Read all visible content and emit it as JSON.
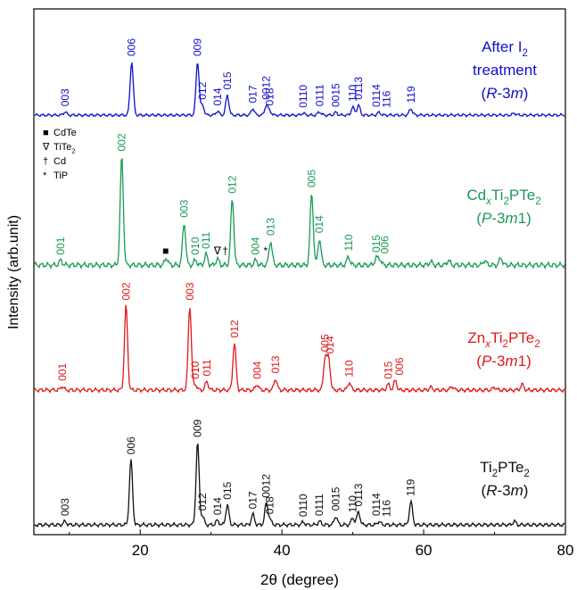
{
  "chart_data": {
    "type": "line",
    "xlabel": "2θ (degree)",
    "ylabel": "Intensity (arb.unit)",
    "xlim": [
      5,
      80
    ],
    "xticks": [
      20,
      40,
      60,
      80
    ],
    "series": [
      {
        "label_lines": [
          "After I2",
          "treatment",
          "(R-3m)"
        ],
        "color": "#1010cc",
        "peaks": [
          [
            9.4,
            0.05
          ],
          [
            18.8,
            0.8
          ],
          [
            28.1,
            0.8
          ],
          [
            28.8,
            0.15
          ],
          [
            30.9,
            0.06
          ],
          [
            32.3,
            0.3
          ],
          [
            35.9,
            0.1
          ],
          [
            37.8,
            0.15
          ],
          [
            38.3,
            0.06
          ],
          [
            43.0,
            0.03
          ],
          [
            45.3,
            0.05
          ],
          [
            47.6,
            0.04
          ],
          [
            50.0,
            0.12
          ],
          [
            50.8,
            0.15
          ],
          [
            53.7,
            0.04
          ],
          [
            58.2,
            0.1
          ],
          [
            72.8,
            0.03
          ]
        ],
        "reflections": [
          {
            "x": 9.4,
            "label": "003"
          },
          {
            "x": 18.8,
            "label": "006"
          },
          {
            "x": 28.1,
            "label": "009"
          },
          {
            "x": 28.8,
            "label": "012"
          },
          {
            "x": 30.9,
            "label": "014"
          },
          {
            "x": 32.3,
            "label": "015"
          },
          {
            "x": 35.9,
            "label": "017"
          },
          {
            "x": 37.8,
            "label": "0012"
          },
          {
            "x": 38.3,
            "label": "018"
          },
          {
            "x": 43.0,
            "label": "0110"
          },
          {
            "x": 45.3,
            "label": "0111"
          },
          {
            "x": 47.6,
            "label": "0015"
          },
          {
            "x": 50.0,
            "label": "110"
          },
          {
            "x": 50.8,
            "label": "0113"
          },
          {
            "x": 53.3,
            "label": "0114"
          },
          {
            "x": 54.8,
            "label": "116"
          },
          {
            "x": 58.2,
            "label": "119"
          }
        ]
      },
      {
        "label_lines": [
          "CdxTi2PTe2",
          "(P-3m1)"
        ],
        "color": "#1a9a55",
        "peaks": [
          [
            8.8,
            0.04
          ],
          [
            17.4,
            0.9
          ],
          [
            23.7,
            0.06
          ],
          [
            26.2,
            0.35
          ],
          [
            27.8,
            0.04
          ],
          [
            29.3,
            0.09
          ],
          [
            30.9,
            0.05
          ],
          [
            33.0,
            0.55
          ],
          [
            36.3,
            0.04
          ],
          [
            38.4,
            0.2
          ],
          [
            44.2,
            0.6
          ],
          [
            45.3,
            0.22
          ],
          [
            49.4,
            0.07
          ],
          [
            53.3,
            0.06
          ],
          [
            53.8,
            0.05
          ],
          [
            61.0,
            0.03
          ],
          [
            63.5,
            0.04
          ],
          [
            68.6,
            0.04
          ],
          [
            70.9,
            0.06
          ]
        ],
        "reflections": [
          {
            "x": 8.8,
            "label": "001"
          },
          {
            "x": 17.4,
            "label": "002"
          },
          {
            "x": 26.2,
            "label": "003"
          },
          {
            "x": 27.8,
            "label": "010"
          },
          {
            "x": 29.3,
            "label": "011"
          },
          {
            "x": 33.0,
            "label": "012"
          },
          {
            "x": 36.3,
            "label": "004"
          },
          {
            "x": 38.4,
            "label": "013"
          },
          {
            "x": 44.2,
            "label": "005"
          },
          {
            "x": 45.3,
            "label": "014"
          },
          {
            "x": 49.4,
            "label": "110"
          },
          {
            "x": 53.3,
            "label": "015"
          },
          {
            "x": 54.5,
            "label": "006"
          }
        ],
        "markers": [
          {
            "x": 23.6,
            "symbol": "■"
          },
          {
            "x": 30.9,
            "symbol": "∇"
          },
          {
            "x": 32.0,
            "symbol": "†"
          },
          {
            "x": 37.7,
            "symbol": "*"
          }
        ]
      },
      {
        "label_lines": [
          "ZnxTi2PTe2",
          "(P-3m1)"
        ],
        "color": "#e01818",
        "peaks": [
          [
            9.0,
            0.04
          ],
          [
            18.0,
            0.9
          ],
          [
            27.0,
            0.9
          ],
          [
            27.8,
            0.06
          ],
          [
            29.4,
            0.09
          ],
          [
            33.3,
            0.5
          ],
          [
            36.5,
            0.06
          ],
          [
            39.1,
            0.12
          ],
          [
            46.1,
            0.35
          ],
          [
            46.6,
            0.33
          ],
          [
            49.5,
            0.08
          ],
          [
            55.0,
            0.06
          ],
          [
            56.0,
            0.1
          ],
          [
            61.0,
            0.03
          ],
          [
            64.0,
            0.04
          ],
          [
            70.0,
            0.03
          ],
          [
            73.9,
            0.06
          ]
        ],
        "reflections": [
          {
            "x": 9.0,
            "label": "001"
          },
          {
            "x": 18.0,
            "label": "002"
          },
          {
            "x": 27.0,
            "label": "003"
          },
          {
            "x": 27.8,
            "label": "010"
          },
          {
            "x": 29.4,
            "label": "011"
          },
          {
            "x": 33.3,
            "label": "012"
          },
          {
            "x": 36.5,
            "label": "004"
          },
          {
            "x": 39.1,
            "label": "013"
          },
          {
            "x": 46.1,
            "label": "005"
          },
          {
            "x": 46.8,
            "label": "014"
          },
          {
            "x": 49.5,
            "label": "110"
          },
          {
            "x": 55.0,
            "label": "015"
          },
          {
            "x": 56.6,
            "label": "006"
          }
        ]
      },
      {
        "label_lines": [
          "Ti2PTe2",
          "(R-3m)"
        ],
        "color": "#111111",
        "peaks": [
          [
            9.4,
            0.04
          ],
          [
            18.7,
            0.75
          ],
          [
            28.1,
            0.95
          ],
          [
            28.8,
            0.1
          ],
          [
            30.9,
            0.05
          ],
          [
            32.3,
            0.23
          ],
          [
            35.9,
            0.12
          ],
          [
            37.8,
            0.25
          ],
          [
            38.3,
            0.06
          ],
          [
            43.0,
            0.03
          ],
          [
            45.3,
            0.04
          ],
          [
            47.6,
            0.1
          ],
          [
            50.0,
            0.08
          ],
          [
            50.8,
            0.15
          ],
          [
            53.7,
            0.04
          ],
          [
            58.2,
            0.27
          ],
          [
            72.8,
            0.04
          ]
        ],
        "reflections": [
          {
            "x": 9.4,
            "label": "003"
          },
          {
            "x": 18.7,
            "label": "006"
          },
          {
            "x": 28.1,
            "label": "009"
          },
          {
            "x": 28.8,
            "label": "012"
          },
          {
            "x": 30.9,
            "label": "014"
          },
          {
            "x": 32.3,
            "label": "015"
          },
          {
            "x": 35.9,
            "label": "017"
          },
          {
            "x": 37.8,
            "label": "0012"
          },
          {
            "x": 38.3,
            "label": "018"
          },
          {
            "x": 43.0,
            "label": "0110"
          },
          {
            "x": 45.3,
            "label": "0111"
          },
          {
            "x": 47.6,
            "label": "0015"
          },
          {
            "x": 50.0,
            "label": "110"
          },
          {
            "x": 50.8,
            "label": "0113"
          },
          {
            "x": 53.3,
            "label": "0114"
          },
          {
            "x": 54.8,
            "label": "116"
          },
          {
            "x": 58.2,
            "label": "119"
          }
        ]
      }
    ],
    "legend": [
      {
        "symbol": "■",
        "label": "CdTe"
      },
      {
        "symbol": "∇",
        "label": "TiTe2"
      },
      {
        "symbol": "†",
        "label": "Cd"
      },
      {
        "symbol": "*",
        "label": "TiP"
      }
    ],
    "legend_position": "top-left of the second panel"
  }
}
